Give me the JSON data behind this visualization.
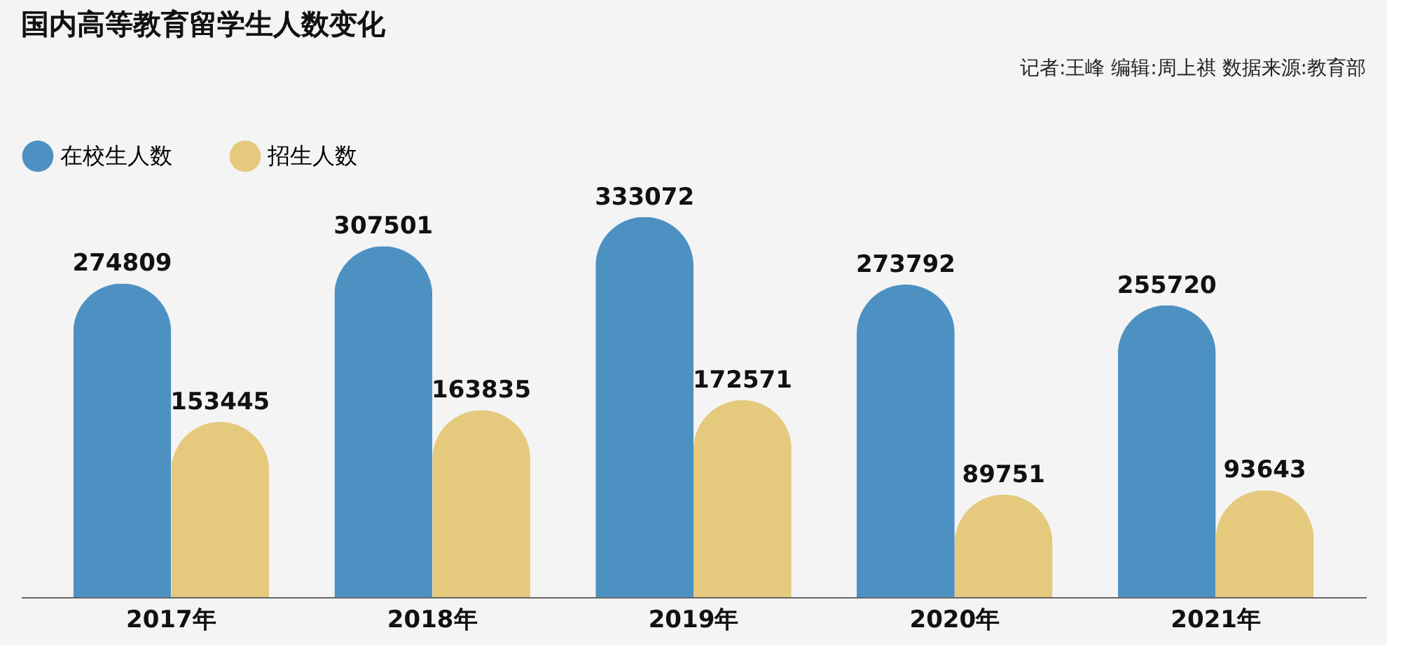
{
  "chart_data": {
    "type": "bar",
    "title": "国内高等教育留学生人数变化",
    "annotations": [
      "记者:王峰   编辑:周上祺   数据来源:教育部"
    ],
    "categories": [
      "2017年",
      "2018年",
      "2019年",
      "2020年",
      "2021年"
    ],
    "series": [
      {
        "name": "在校生人数",
        "color": "#2f7fb8",
        "values": [
          274809,
          307501,
          333072,
          273792,
          255720
        ]
      },
      {
        "name": "招生人数",
        "color": "#e2c267",
        "values": [
          153445,
          163835,
          172571,
          89751,
          93643
        ]
      }
    ],
    "data_labels": true,
    "legend": "top left",
    "grid": false
  }
}
